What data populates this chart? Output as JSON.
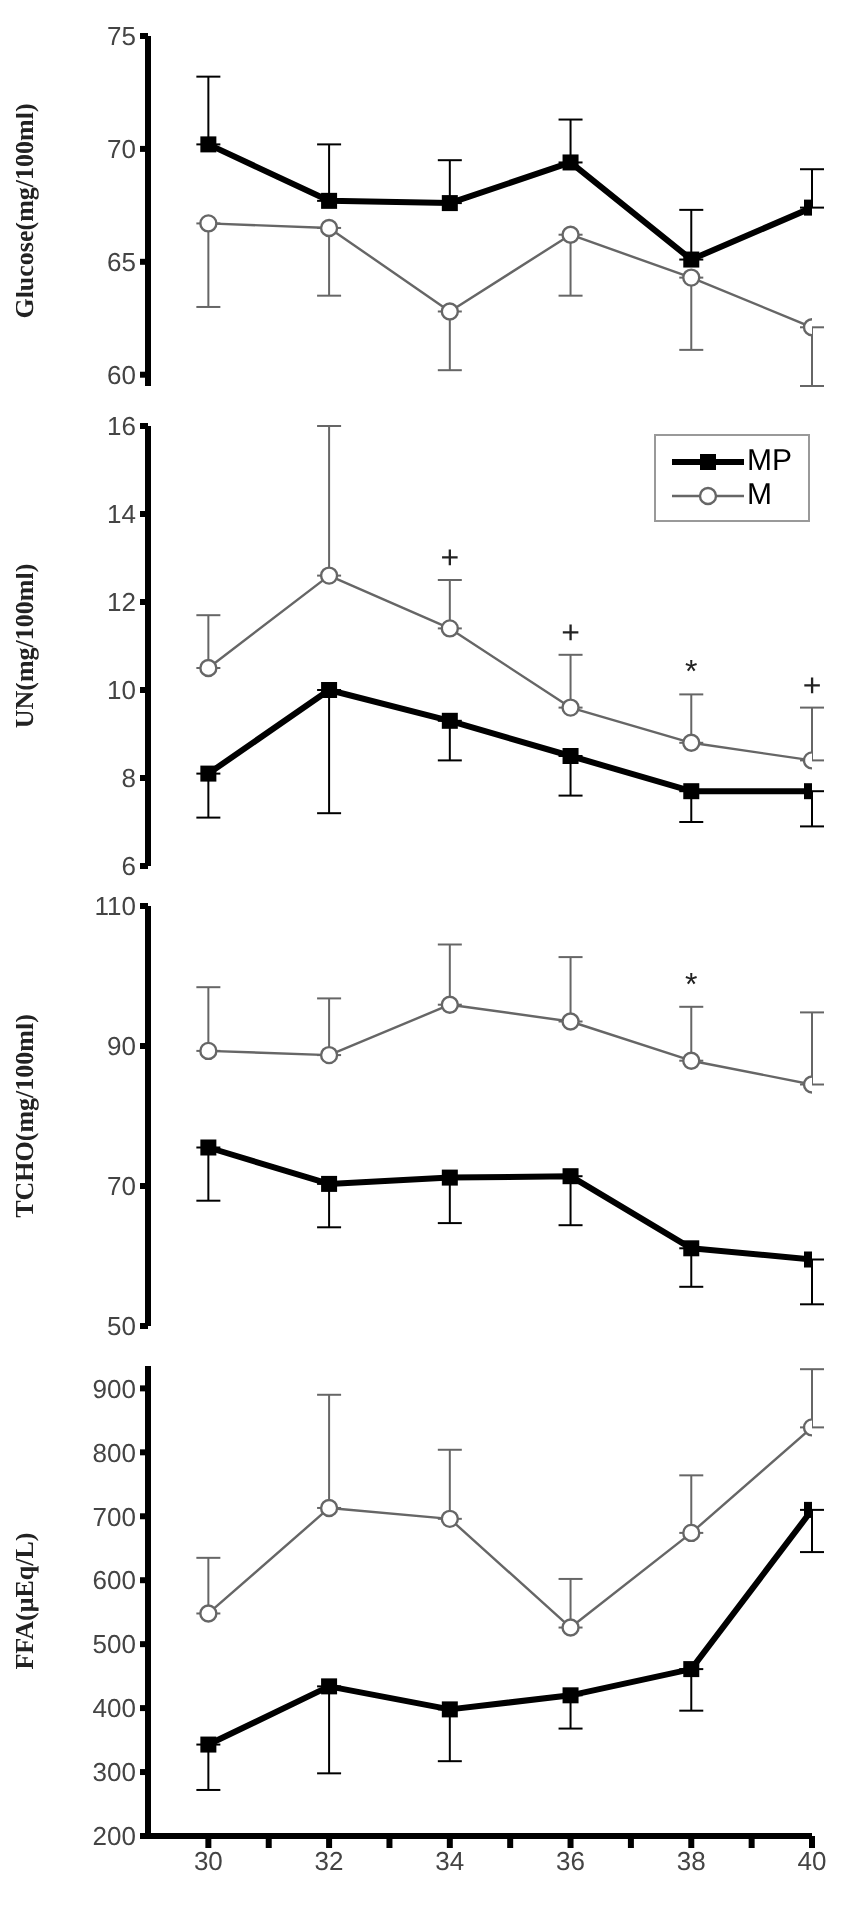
{
  "chart_data": [
    {
      "type": "line",
      "ylabel": "Glucose(mg/100ml)",
      "x": [
        30,
        32,
        34,
        36,
        38,
        40
      ],
      "xlim": [
        29,
        40
      ],
      "ylim": [
        59.5,
        75
      ],
      "yticks": [
        60,
        65,
        70,
        75
      ],
      "tick_labels": "y",
      "grid": false,
      "legend": false,
      "series": [
        {
          "color": "#000000",
          "marker": "square",
          "values": [
            70.2,
            67.7,
            67.6,
            69.4,
            65.1,
            67.4
          ],
          "errors": [
            [
              70.2,
              73.2
            ],
            [
              67.7,
              70.2
            ],
            [
              67.6,
              69.5
            ],
            [
              69.4,
              71.3
            ],
            [
              65.1,
              67.3
            ],
            [
              67.4,
              69.1
            ]
          ]
        },
        {
          "color": "#666666",
          "marker": "circle",
          "values": [
            66.7,
            66.5,
            62.8,
            66.2,
            64.3,
            62.1
          ],
          "errors": [
            [
              63.0,
              66.7
            ],
            [
              63.5,
              66.5
            ],
            [
              60.2,
              62.8
            ],
            [
              63.5,
              66.2
            ],
            [
              61.1,
              64.3
            ],
            [
              59.5,
              62.1
            ]
          ]
        }
      ]
    },
    {
      "type": "line",
      "ylabel": "UN(mg/100ml)",
      "x": [
        30,
        32,
        34,
        36,
        38,
        40
      ],
      "xlim": [
        29,
        40
      ],
      "ylim": [
        6,
        16
      ],
      "yticks": [
        6,
        8,
        10,
        12,
        14,
        16
      ],
      "tick_labels": "y",
      "grid": false,
      "legend": "top right",
      "series": [
        {
          "name": "MP",
          "color": "#000000",
          "marker": "square",
          "values": [
            8.1,
            10.0,
            9.3,
            8.5,
            7.7,
            7.7
          ],
          "errors": [
            [
              7.1,
              8.1
            ],
            [
              7.2,
              10.0
            ],
            [
              8.4,
              9.3
            ],
            [
              7.6,
              8.5
            ],
            [
              7.0,
              7.7
            ],
            [
              6.9,
              7.7
            ]
          ]
        },
        {
          "name": "M",
          "color": "#666666",
          "marker": "circle",
          "values": [
            10.5,
            12.6,
            11.4,
            9.6,
            8.8,
            8.4
          ],
          "errors": [
            [
              10.5,
              11.7
            ],
            [
              12.6,
              16.0
            ],
            [
              11.4,
              12.5
            ],
            [
              9.6,
              10.8
            ],
            [
              8.8,
              9.9
            ],
            [
              8.4,
              9.6
            ]
          ]
        }
      ],
      "annotations": [
        {
          "text": "+",
          "x": 34,
          "y": 12.5
        },
        {
          "text": "+",
          "x": 36,
          "y": 10.8
        },
        {
          "text": "*",
          "x": 38,
          "y": 9.9
        },
        {
          "text": "+",
          "x": 40,
          "y": 9.6
        }
      ]
    },
    {
      "type": "line",
      "ylabel": "TCHO(mg/100ml)",
      "x": [
        30,
        32,
        34,
        36,
        38,
        40
      ],
      "xlim": [
        29,
        40
      ],
      "ylim": [
        50,
        110
      ],
      "yticks": [
        50,
        70,
        90,
        110
      ],
      "tick_labels": "y",
      "grid": false,
      "legend": false,
      "series": [
        {
          "color": "#000000",
          "marker": "square",
          "values": [
            75.5,
            70.3,
            71.2,
            71.4,
            61.1,
            59.5
          ],
          "errors": [
            [
              67.9,
              75.5
            ],
            [
              64.1,
              70.3
            ],
            [
              64.7,
              71.2
            ],
            [
              64.4,
              71.4
            ],
            [
              55.6,
              61.1
            ],
            [
              53.1,
              59.5
            ]
          ]
        },
        {
          "color": "#666666",
          "marker": "circle",
          "values": [
            89.3,
            88.7,
            95.9,
            93.5,
            87.9,
            84.5
          ],
          "errors": [
            [
              89.3,
              98.4
            ],
            [
              88.7,
              96.8
            ],
            [
              95.9,
              104.5
            ],
            [
              93.5,
              102.7
            ],
            [
              87.9,
              95.6
            ],
            [
              84.5,
              94.8
            ]
          ]
        }
      ],
      "annotations": [
        {
          "text": "*",
          "x": 38,
          "y": 95.6
        }
      ]
    },
    {
      "type": "line",
      "ylabel": "FFA(μEq/L)",
      "x": [
        30,
        32,
        34,
        36,
        38,
        40
      ],
      "xlim": [
        29,
        40
      ],
      "xticks": [
        30,
        {
          "value": 31,
          "label": null
        },
        32,
        {
          "value": 33,
          "label": null
        },
        34,
        {
          "value": 35,
          "label": null
        },
        36,
        {
          "value": 37,
          "label": null
        },
        38,
        {
          "value": 39,
          "label": null
        },
        40
      ],
      "ylim": [
        200,
        935
      ],
      "yticks": [
        200,
        300,
        400,
        500,
        600,
        700,
        800,
        900
      ],
      "grid": false,
      "legend": false,
      "series": [
        {
          "color": "#000000",
          "marker": "square",
          "values": [
            343,
            434,
            398,
            420,
            461,
            710
          ],
          "errors": [
            [
              272,
              343
            ],
            [
              298,
              434
            ],
            [
              317,
              398
            ],
            [
              368,
              420
            ],
            [
              396,
              461
            ],
            [
              644,
              710
            ]
          ]
        },
        {
          "color": "#666666",
          "marker": "circle",
          "values": [
            548,
            713,
            696,
            526,
            674,
            839
          ],
          "errors": [
            [
              548,
              635
            ],
            [
              713,
              890
            ],
            [
              696,
              804
            ],
            [
              526,
              602
            ],
            [
              674,
              764
            ],
            [
              839,
              930
            ]
          ]
        }
      ]
    }
  ]
}
